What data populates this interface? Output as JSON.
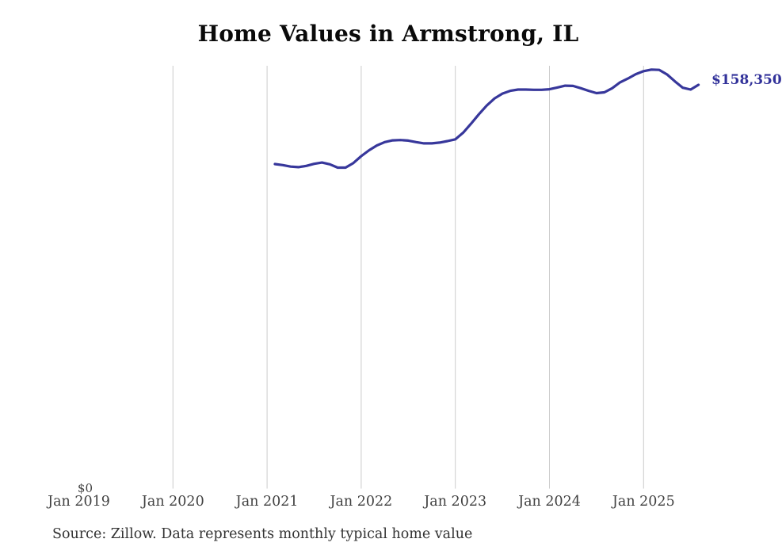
{
  "chart_data": {
    "type": "line",
    "title": "Home Values in Armstrong, IL",
    "source_note": "Source: Zillow. Data represents monthly typical home value",
    "series_name": "Monthly typical home value",
    "latest_value_label": "$158,350",
    "latest_value": 158350,
    "x": [
      "Feb 2021",
      "Mar 2021",
      "Apr 2021",
      "May 2021",
      "Jun 2021",
      "Jul 2021",
      "Aug 2021",
      "Sep 2021",
      "Oct 2021",
      "Nov 2021",
      "Dec 2021",
      "Jan 2022",
      "Feb 2022",
      "Mar 2022",
      "Apr 2022",
      "May 2022",
      "Jun 2022",
      "Jul 2022",
      "Aug 2022",
      "Sep 2022",
      "Oct 2022",
      "Nov 2022",
      "Dec 2022",
      "Jan 2023",
      "Feb 2023",
      "Mar 2023",
      "Apr 2023",
      "May 2023",
      "Jun 2023",
      "Jul 2023",
      "Aug 2023",
      "Sep 2023",
      "Oct 2023",
      "Nov 2023",
      "Dec 2023",
      "Jan 2024",
      "Feb 2024",
      "Mar 2024",
      "Apr 2024",
      "May 2024",
      "Jun 2024",
      "Jul 2024",
      "Aug 2024",
      "Sep 2024",
      "Oct 2024",
      "Nov 2024",
      "Dec 2024",
      "Jan 2025",
      "Feb 2025",
      "Mar 2025",
      "Apr 2025",
      "May 2025",
      "Jun 2025",
      "Jul 2025",
      "Aug 2025"
    ],
    "values": [
      127300,
      126900,
      126300,
      126100,
      126600,
      127400,
      127900,
      127200,
      125900,
      125900,
      127700,
      130400,
      132700,
      134600,
      135900,
      136600,
      136700,
      136500,
      135900,
      135400,
      135400,
      135700,
      136300,
      137000,
      139600,
      143100,
      146800,
      150200,
      153000,
      154900,
      156000,
      156500,
      156500,
      156400,
      156400,
      156600,
      157300,
      158000,
      157900,
      157000,
      156000,
      155100,
      155400,
      157000,
      159300,
      160800,
      162500,
      163700,
      164300,
      164200,
      162400,
      159700,
      157200,
      156500,
      158350
    ],
    "x_axis_ticks": [
      {
        "label": "Jan 2019",
        "gridline": false
      },
      {
        "label": "Jan 2020",
        "gridline": true
      },
      {
        "label": "Jan 2021",
        "gridline": true
      },
      {
        "label": "Jan 2022",
        "gridline": true
      },
      {
        "label": "Jan 2023",
        "gridline": true
      },
      {
        "label": "Jan 2024",
        "gridline": true
      },
      {
        "label": "Jan 2025",
        "gridline": true
      }
    ],
    "y_axis": {
      "zero_label": "$0",
      "min": 0
    },
    "ylim": [
      0,
      170000
    ],
    "grid": "vertical-only",
    "legend": "none",
    "colors": {
      "line": "#37379b",
      "latest_label": "#32329a",
      "gridline": "#cccccc",
      "axis_text": "#414141",
      "title": "#0a0a0a",
      "source_text": "#333333",
      "background": "#ffffff"
    }
  }
}
